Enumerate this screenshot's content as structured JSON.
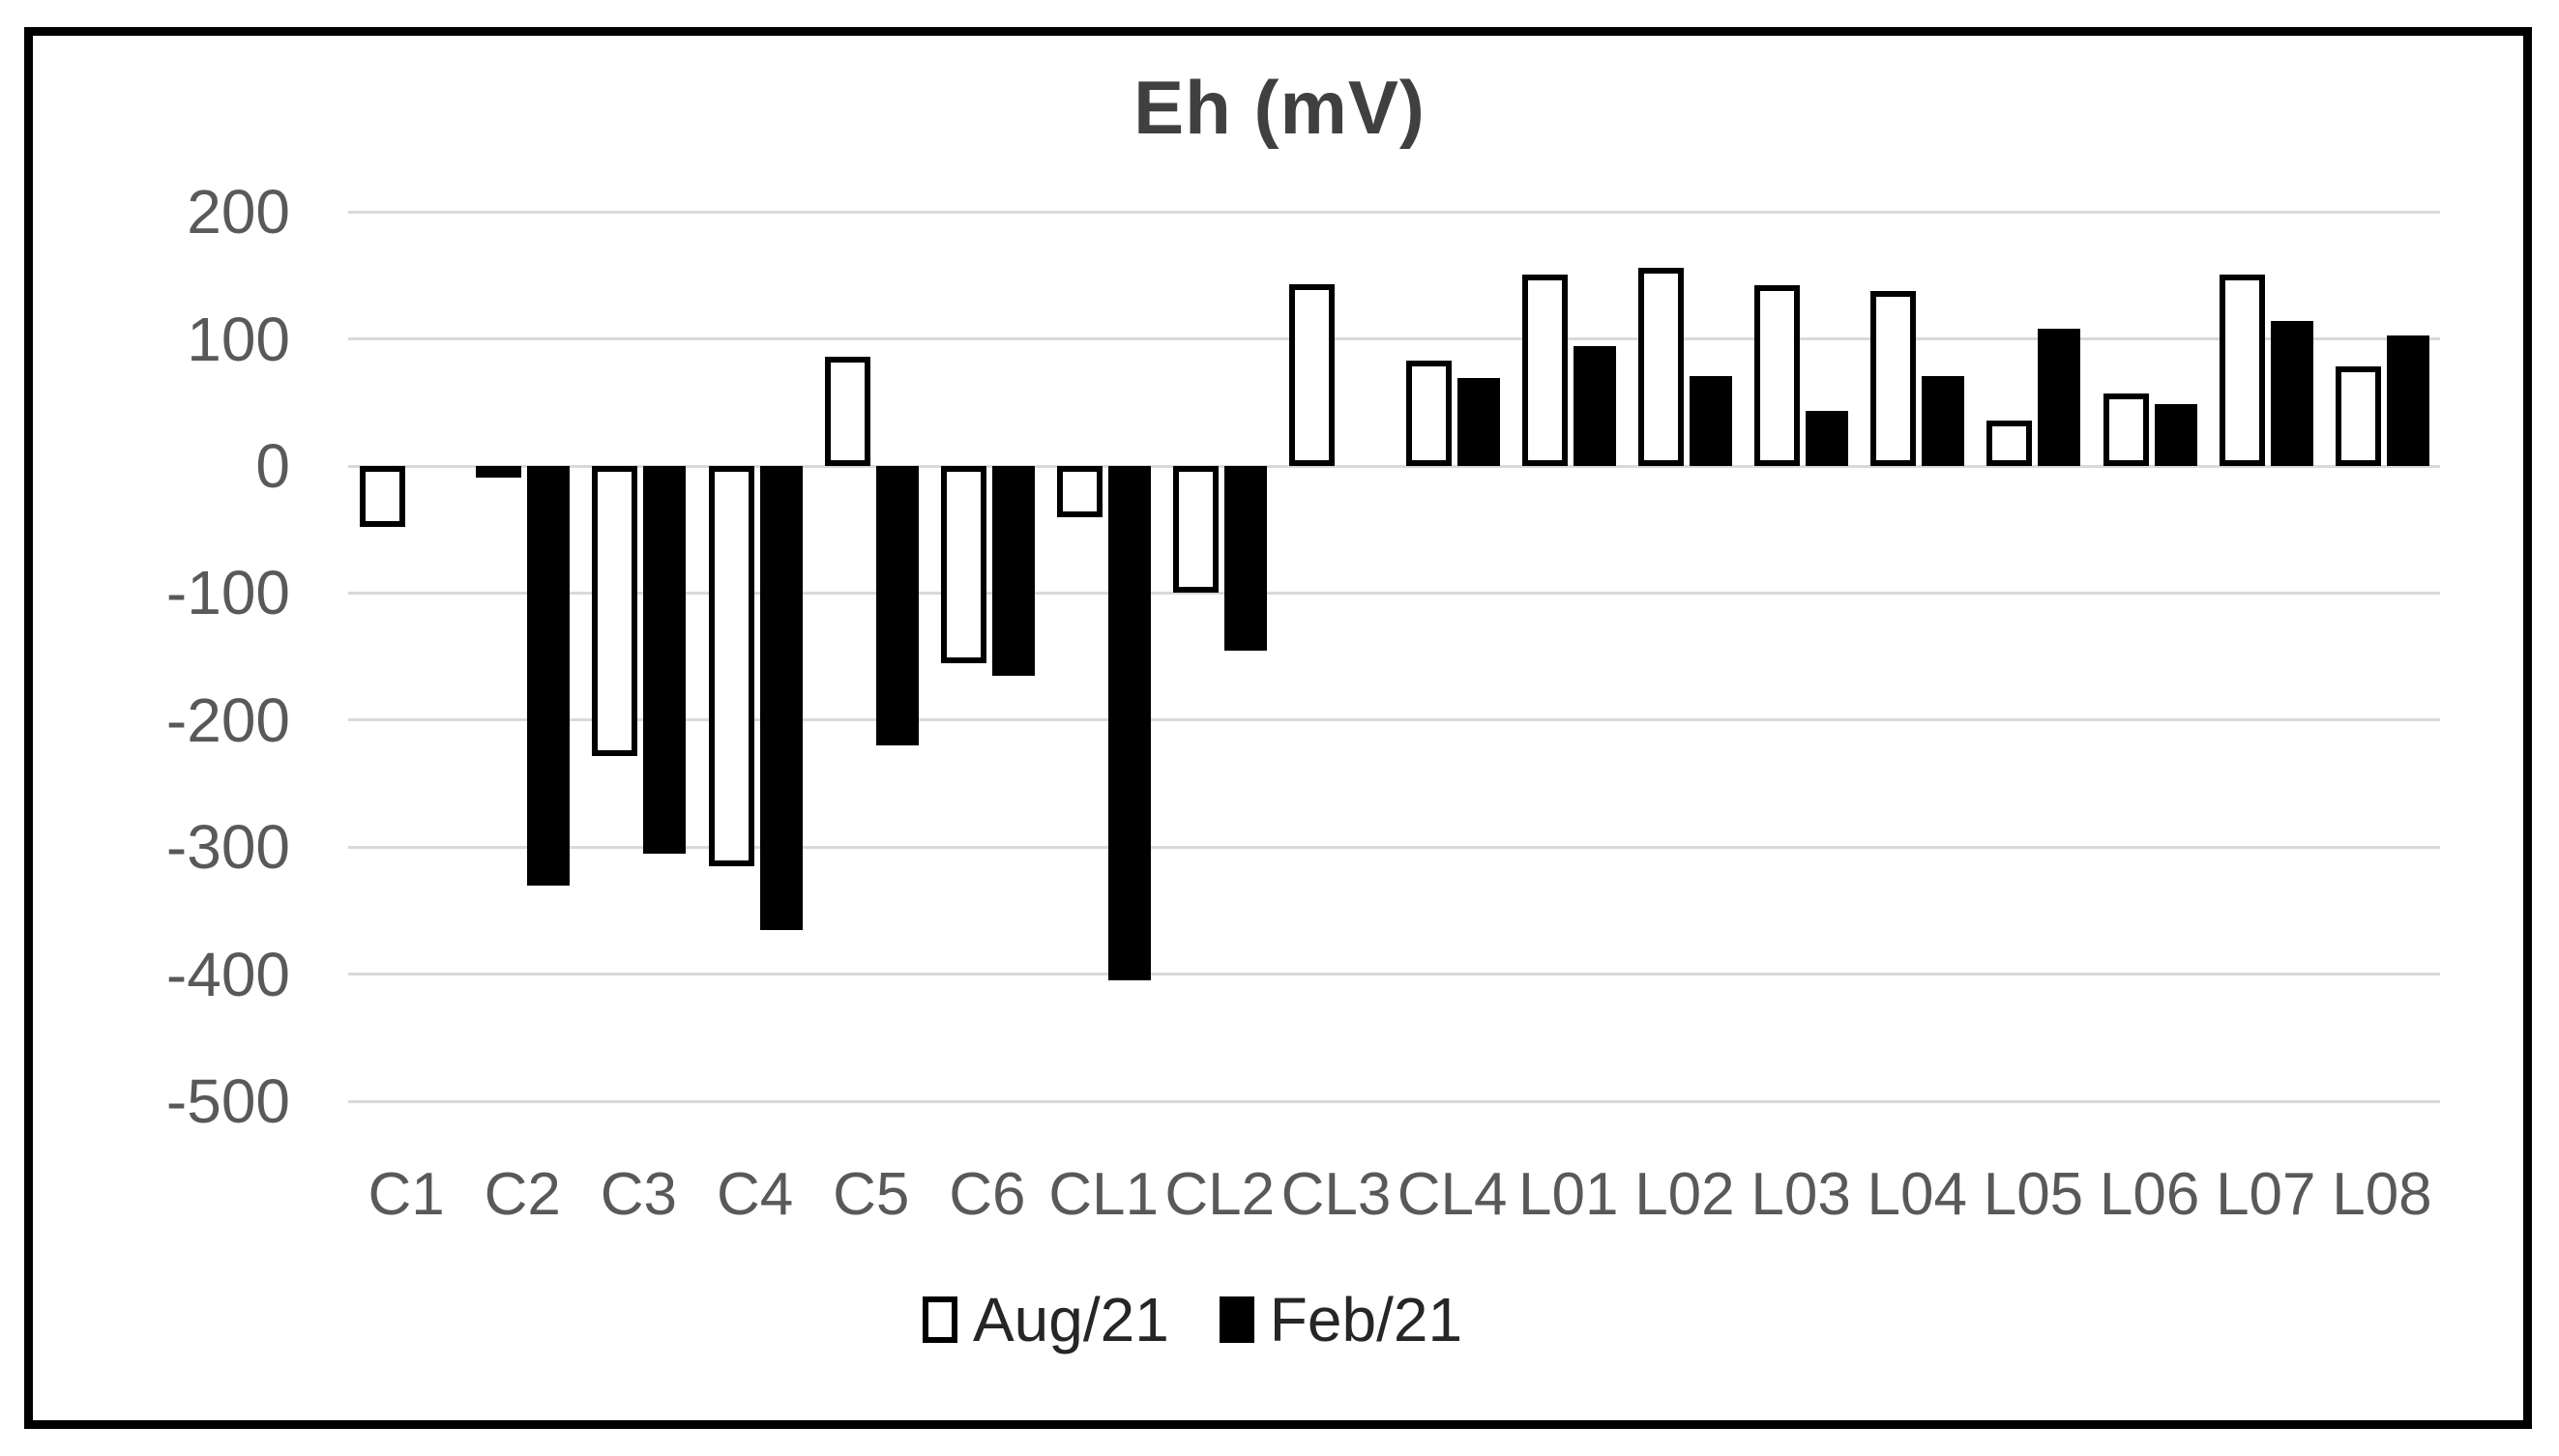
{
  "figure": {
    "title": "Eh (mV)",
    "unit": "mV"
  },
  "colors": {
    "frame_border": "#000000",
    "gridline": "#d9d9d9",
    "axis_label": "#595959",
    "title_text": "#404040",
    "legend_text": "#262626",
    "aug_bar_fill": "#ffffff",
    "feb_bar_fill": "#000000",
    "bar_border": "#000000"
  },
  "chart_data": {
    "type": "bar",
    "title": "Eh (mV)",
    "xlabel": "",
    "ylabel": "",
    "categories": [
      "C1",
      "C2",
      "C3",
      "C4",
      "C5",
      "C6",
      "CL1",
      "CL2",
      "CL3",
      "CL4",
      "L01",
      "L02",
      "L03",
      "L04",
      "L05",
      "L06",
      "L07",
      "L08"
    ],
    "series": [
      {
        "name": "Aug/21",
        "fill": "#ffffff",
        "border": "#000000",
        "values": [
          -48,
          -5,
          -228,
          -315,
          86,
          -155,
          -40,
          -100,
          143,
          83,
          151,
          156,
          142,
          138,
          36,
          57,
          151,
          78
        ]
      },
      {
        "name": "Feb/21",
        "fill": "#000000",
        "border": "#000000",
        "values": [
          null,
          -330,
          -305,
          -365,
          -220,
          -165,
          -405,
          -145,
          null,
          69,
          94,
          71,
          43,
          71,
          108,
          49,
          114,
          103
        ]
      }
    ],
    "ylim": [
      -500,
      200
    ],
    "yticks": [
      200,
      100,
      0,
      -100,
      -200,
      -300,
      -400,
      -500
    ],
    "grid": true,
    "legend_position": "bottom"
  }
}
